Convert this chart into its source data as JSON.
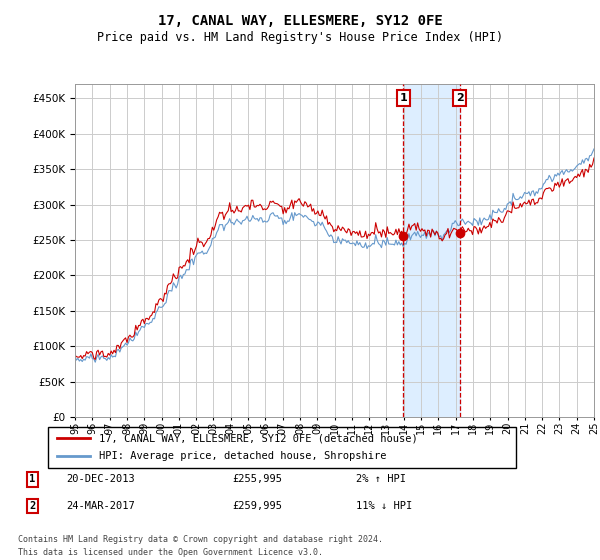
{
  "title": "17, CANAL WAY, ELLESMERE, SY12 0FE",
  "subtitle": "Price paid vs. HM Land Registry's House Price Index (HPI)",
  "legend_line1": "17, CANAL WAY, ELLESMERE, SY12 0FE (detached house)",
  "legend_line2": "HPI: Average price, detached house, Shropshire",
  "annotation1_date": "20-DEC-2013",
  "annotation1_price": "£255,995",
  "annotation1_hpi": "2% ↑ HPI",
  "annotation2_date": "24-MAR-2017",
  "annotation2_price": "£259,995",
  "annotation2_hpi": "11% ↓ HPI",
  "footer1": "Contains HM Land Registry data © Crown copyright and database right 2024.",
  "footer2": "This data is licensed under the Open Government Licence v3.0.",
  "red_color": "#cc0000",
  "blue_color": "#6699cc",
  "shaded_color": "#ddeeff",
  "annotation_color": "#cc0000",
  "grid_color": "#cccccc",
  "background_color": "#ffffff",
  "ylim": [
    0,
    470000
  ],
  "yticks": [
    0,
    50000,
    100000,
    150000,
    200000,
    250000,
    300000,
    350000,
    400000,
    450000
  ],
  "xlim": [
    1995,
    2025
  ],
  "sale1_x": 2013.97,
  "sale1_y": 255995,
  "sale2_x": 2017.23,
  "sale2_y": 259995
}
